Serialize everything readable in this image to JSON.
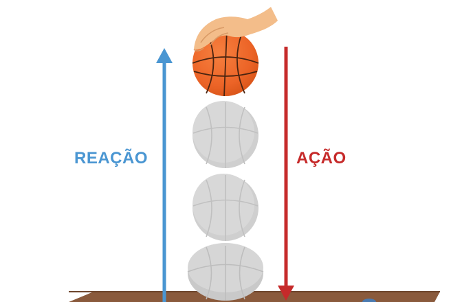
{
  "diagram": {
    "labels": {
      "reaction": "REAÇÃO",
      "action": "AÇÃO"
    },
    "colors": {
      "reaction": "#4a96d2",
      "action": "#c62a2a",
      "ball_orange": "#ec6427",
      "ball_ghost": "#d4d4d4",
      "hand": "#f3bd8a",
      "floor": "#8a5a3c"
    },
    "objects": {
      "ball_in_hand": "basketball",
      "ghost_ball_count": 3,
      "hand": "hand-icon"
    }
  }
}
